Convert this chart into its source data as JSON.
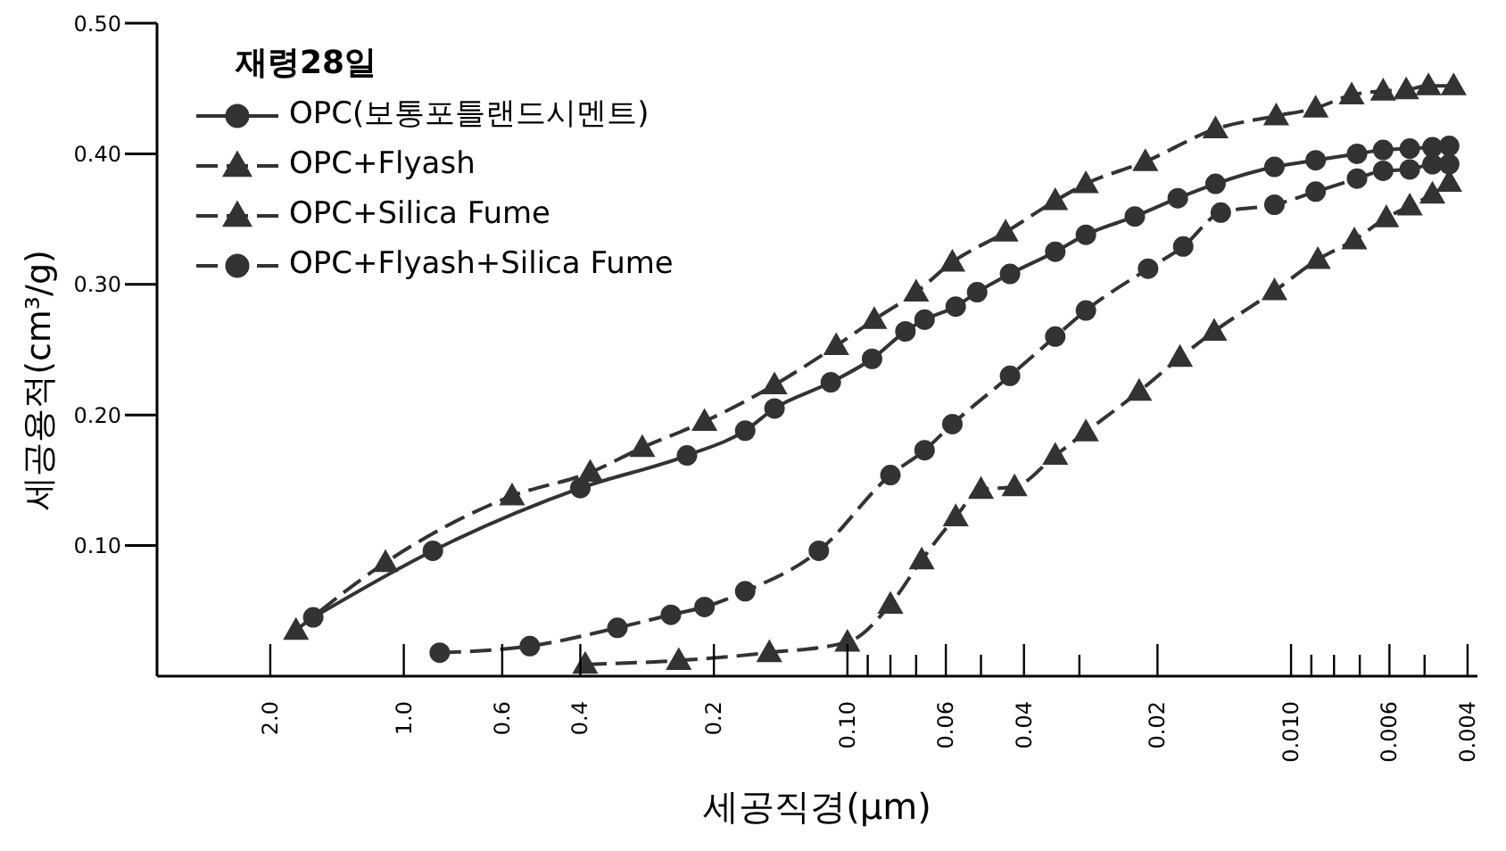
{
  "chart_data": {
    "type": "line",
    "xlabel": "세공직경(μm)",
    "ylabel": "세공용적(cm³/g)",
    "legend_title": "재령28일",
    "legend": "top left",
    "log": "x",
    "grid": false,
    "xlim": [
      3.6,
      0.0038
    ],
    "ylim": [
      0,
      0.5
    ],
    "xticks": [
      {
        "value": 2,
        "label": "2.0"
      },
      {
        "value": 1,
        "label": "1.0"
      },
      0.6,
      0.4,
      0.2,
      {
        "value": 0.1,
        "label": "0.10"
      },
      0.06,
      0.04,
      0.02,
      {
        "value": 0.01,
        "label": "0.010"
      },
      0.006,
      0.004,
      {
        "value": 0.09,
        "label": null
      },
      {
        "value": 0.08,
        "label": null
      },
      {
        "value": 0.07,
        "label": null
      },
      {
        "value": 0.05,
        "label": null
      },
      {
        "value": 0.03,
        "label": null
      },
      {
        "value": 0.009,
        "label": null
      },
      {
        "value": 0.008,
        "label": null
      },
      {
        "value": 0.007,
        "label": null
      },
      {
        "value": 0.005,
        "label": null
      }
    ],
    "yticks": [
      {
        "value": 0.1,
        "label": "0.10"
      },
      {
        "value": 0.2,
        "label": "0.20"
      },
      {
        "value": 0.3,
        "label": "0.30"
      },
      {
        "value": 0.4,
        "label": "0.40"
      },
      {
        "value": 0.5,
        "label": "0.50"
      }
    ],
    "series": [
      {
        "name": "OPC(보통포틀랜드시멘트)",
        "color": "#333333",
        "marker": "circle",
        "line_style": "solid",
        "x": [
          1.6,
          0.86,
          0.4,
          0.23,
          0.17,
          0.146,
          0.109,
          0.088,
          0.074,
          0.067,
          0.057,
          0.051,
          0.043,
          0.034,
          0.029,
          0.0225,
          0.018,
          0.0148,
          0.0109,
          0.0088,
          0.0071,
          0.0062,
          0.0054,
          0.0048,
          0.0044
        ],
        "values": [
          0.045,
          0.096,
          0.144,
          0.169,
          0.188,
          0.205,
          0.225,
          0.243,
          0.264,
          0.273,
          0.283,
          0.294,
          0.308,
          0.325,
          0.338,
          0.352,
          0.366,
          0.377,
          0.39,
          0.395,
          0.4,
          0.403,
          0.404,
          0.405,
          0.406
        ]
      },
      {
        "name": "OPC+Flyash",
        "color": "#333333",
        "marker": "triangle",
        "line_style": "dashed",
        "x": [
          1.75,
          1.1,
          0.57,
          0.38,
          0.29,
          0.21,
          0.146,
          0.106,
          0.087,
          0.07,
          0.058,
          0.044,
          0.034,
          0.029,
          0.0213,
          0.0148,
          0.0108,
          0.0088,
          0.0073,
          0.0062,
          0.0055,
          0.0049,
          0.0043
        ],
        "values": [
          0.035,
          0.087,
          0.138,
          0.156,
          0.175,
          0.195,
          0.223,
          0.253,
          0.273,
          0.294,
          0.317,
          0.34,
          0.364,
          0.377,
          0.394,
          0.419,
          0.429,
          0.435,
          0.445,
          0.448,
          0.449,
          0.452,
          0.452
        ]
      },
      {
        "name": "OPC+Silica Fume",
        "color": "#333333",
        "marker": "triangle",
        "line_style": "dashed",
        "x": [
          0.39,
          0.24,
          0.15,
          0.1,
          0.08,
          0.068,
          0.057,
          0.05,
          0.042,
          0.034,
          0.029,
          0.022,
          0.0178,
          0.0149,
          0.0109,
          0.0087,
          0.0072,
          0.0061,
          0.0054,
          0.0048,
          0.0044
        ],
        "values": [
          0.009,
          0.012,
          0.018,
          0.026,
          0.055,
          0.089,
          0.122,
          0.143,
          0.145,
          0.169,
          0.187,
          0.218,
          0.244,
          0.264,
          0.295,
          0.319,
          0.334,
          0.351,
          0.36,
          0.369,
          0.378
        ]
      },
      {
        "name": "OPC+Flyash+Silica Fume",
        "color": "#333333",
        "marker": "circle",
        "line_style": "dashed",
        "x": [
          0.83,
          0.52,
          0.33,
          0.25,
          0.21,
          0.17,
          0.116,
          0.08,
          0.067,
          0.058,
          0.043,
          0.034,
          0.029,
          0.021,
          0.0175,
          0.0144,
          0.0109,
          0.0088,
          0.0071,
          0.0062,
          0.0054,
          0.0048,
          0.0044
        ],
        "values": [
          0.018,
          0.023,
          0.037,
          0.047,
          0.053,
          0.065,
          0.096,
          0.154,
          0.173,
          0.193,
          0.23,
          0.26,
          0.28,
          0.312,
          0.329,
          0.355,
          0.361,
          0.371,
          0.381,
          0.387,
          0.388,
          0.392,
          0.392
        ]
      }
    ]
  }
}
